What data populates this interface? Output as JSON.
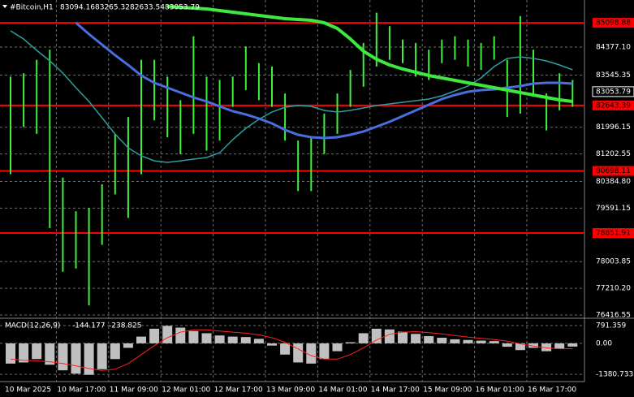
{
  "chart_data": [
    {
      "type": "ohlc",
      "title": "#Bitcoin,H1",
      "ohlc_header": [
        83094.16,
        83265.32,
        82633.54,
        83053.79
      ],
      "categories": [
        "10 Mar 2025",
        null,
        null,
        null,
        "10 Mar 17:00",
        null,
        null,
        null,
        "11 Mar 09:00",
        null,
        null,
        null,
        "12 Mar 01:00",
        null,
        null,
        null,
        "12 Mar 17:00",
        null,
        null,
        null,
        "13 Mar 09:00",
        null,
        null,
        null,
        "14 Mar 01:00",
        null,
        null,
        null,
        "14 Mar 17:00",
        null,
        null,
        null,
        "15 Mar 09:00",
        null,
        null,
        null,
        "16 Mar 01:00",
        null,
        null,
        null,
        "16 Mar 17:00",
        null,
        null,
        null
      ],
      "high": [
        83500,
        83600,
        84000,
        84300,
        80500,
        79500,
        79600,
        80300,
        81800,
        82300,
        84000,
        84000,
        83500,
        82800,
        84700,
        83500,
        83400,
        83500,
        84400,
        83900,
        83800,
        83000,
        81600,
        81700,
        82400,
        83000,
        83700,
        84500,
        85400,
        85000,
        84600,
        84500,
        84300,
        84600,
        84700,
        84600,
        84500,
        84700,
        84000,
        85300,
        84300,
        83000,
        83600,
        83400
      ],
      "low": [
        80600,
        82000,
        81800,
        79000,
        77700,
        77800,
        76700,
        78500,
        80000,
        79300,
        80600,
        82200,
        81700,
        81200,
        81800,
        81300,
        81600,
        82600,
        83100,
        82800,
        82600,
        81600,
        80100,
        80100,
        81200,
        81800,
        82600,
        83200,
        83800,
        84000,
        83900,
        83500,
        83400,
        83900,
        84000,
        83800,
        83700,
        84000,
        82300,
        82400,
        82900,
        81900,
        82500,
        82600
      ],
      "color": "#3cf03c",
      "lines": [
        {
          "color": "#2e9ea0",
          "width": 1.5,
          "values": [
            84860,
            84619,
            84281,
            83967,
            83605,
            83171,
            82761,
            82278,
            81795,
            81385,
            81144,
            80999,
            80951,
            80999,
            81048,
            81096,
            81240,
            81627,
            81965,
            82230,
            82447,
            82592,
            82640,
            82616,
            82496,
            82447,
            82496,
            82568,
            82640,
            82688,
            82737,
            82785,
            82833,
            82930,
            83074,
            83219,
            83461,
            83798,
            84040,
            84088,
            84040,
            83967,
            83847,
            83702
          ]
        },
        {
          "color": "#4a6ee0",
          "width": 3,
          "values": [
            null,
            null,
            null,
            null,
            null,
            85101,
            84764,
            84450,
            84136,
            83847,
            83533,
            83316,
            83171,
            83026,
            82881,
            82761,
            82616,
            82471,
            82375,
            82254,
            82109,
            81916,
            81772,
            81699,
            81675,
            81699,
            81772,
            81868,
            82013,
            82158,
            82327,
            82496,
            82664,
            82833,
            82954,
            83050,
            83099,
            83123,
            83171,
            83219,
            83292,
            83316,
            83316,
            83292
          ]
        },
        {
          "color": "#3ee83e",
          "width": 4,
          "values": [
            null,
            null,
            null,
            null,
            null,
            null,
            null,
            null,
            null,
            null,
            null,
            null,
            85584,
            85560,
            85536,
            85512,
            85463,
            85415,
            85367,
            85318,
            85270,
            85222,
            85198,
            85174,
            85101,
            84932,
            84619,
            84257,
            84015,
            83847,
            83726,
            83629,
            83533,
            83461,
            83388,
            83316,
            83243,
            83171,
            83099,
            83026,
            82954,
            82881,
            82809,
            82761
          ]
        }
      ],
      "levels": [
        85098.88,
        82643.39,
        80698.11,
        78851.91
      ],
      "level_color": "#ff0000",
      "last_price": 83053.79,
      "ylim": [
        76320,
        85777
      ],
      "yticks": [
        {
          "value": 84377.1,
          "label": "84377.10"
        },
        83545.35,
        81996.15,
        81202.55,
        {
          "value": 80384.8,
          "label": "80384.80"
        },
        79591.15,
        78003.85,
        {
          "value": 77210.2,
          "label": "77210.20"
        },
        76416.55
      ],
      "grid": true
    },
    {
      "type": "macd",
      "title": "MACD(12,26,9)",
      "macd_value": -144.177,
      "signal_value": -238.825,
      "histogram": [
        -900,
        -850,
        -700,
        -950,
        -1200,
        -1350,
        -1400,
        -1150,
        -700,
        -200,
        300,
        650,
        780,
        700,
        550,
        450,
        350,
        300,
        280,
        200,
        -100,
        -500,
        -850,
        -900,
        -700,
        -350,
        50,
        450,
        650,
        620,
        520,
        420,
        320,
        250,
        180,
        150,
        120,
        100,
        -150,
        -300,
        -200,
        -350,
        -250,
        -144.177
      ],
      "signal": [
        -700,
        -750,
        -780,
        -820,
        -900,
        -1000,
        -1120,
        -1200,
        -1150,
        -900,
        -500,
        -100,
        250,
        500,
        600,
        600,
        550,
        500,
        450,
        380,
        250,
        50,
        -250,
        -550,
        -700,
        -700,
        -500,
        -200,
        150,
        400,
        500,
        520,
        480,
        420,
        350,
        280,
        220,
        170,
        100,
        -20,
        -120,
        -200,
        -240,
        -238.825
      ],
      "histogram_color": "#c0c0c0",
      "signal_color": "#ff2020",
      "ylim": [
        -1700,
        1080
      ],
      "yticks": [
        791.359,
        {
          "value": 0,
          "label": "0.00"
        },
        -1380.733
      ],
      "grid": true
    }
  ]
}
